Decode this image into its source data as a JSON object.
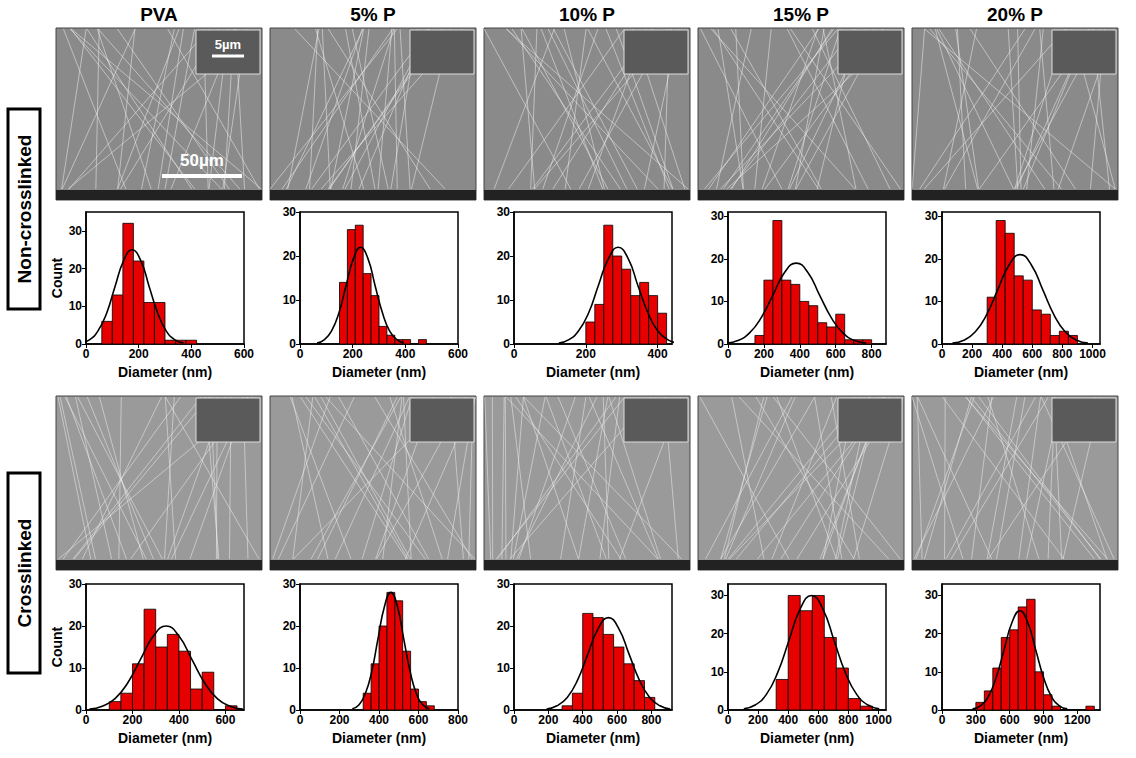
{
  "columns": [
    "PVA",
    "5% P",
    "10% P",
    "15% P",
    "20% P"
  ],
  "rows": [
    "Non-crosslinked",
    "Crosslinked"
  ],
  "scale_bars": {
    "inset": "5µm",
    "image": "50µm"
  },
  "chart_data": [
    {
      "type": "histogram",
      "xlabel": "Diameter (nm)",
      "ylabel": "Count",
      "color": "#e60000",
      "bins": [
        60,
        100,
        140,
        180,
        220,
        260,
        300,
        340,
        380,
        420
      ],
      "counts": [
        6,
        13,
        32,
        22,
        11,
        11,
        1,
        1,
        1
      ],
      "xlim": [
        0,
        600
      ],
      "xticks": [
        0,
        200,
        400,
        600
      ],
      "ylim": [
        0,
        35
      ],
      "yticks": [
        0,
        10,
        20,
        30
      ],
      "fit": {
        "color": "#000000",
        "x": [
          -20,
          13,
          45,
          78,
          110,
          143,
          175,
          208,
          240,
          273,
          305,
          338,
          370
        ],
        "y": [
          0.3,
          1.1,
          3.4,
          8.1,
          15.2,
          22.1,
          25,
          22.1,
          15.2,
          8.1,
          3.4,
          1.1,
          0.3
        ]
      }
    },
    {
      "type": "histogram",
      "xlabel": "Diameter (nm)",
      "color": "#e60000",
      "bins": [
        150,
        180,
        210,
        240,
        270,
        300,
        330,
        360,
        390,
        420,
        450,
        480
      ],
      "counts": [
        14,
        26,
        27,
        16,
        11,
        4,
        2,
        1,
        1,
        0,
        1
      ],
      "xlim": [
        0,
        600
      ],
      "xticks": [
        0,
        200,
        400,
        600
      ],
      "ylim": [
        0,
        30
      ],
      "yticks": [
        0,
        10,
        20,
        30
      ],
      "fit": {
        "color": "#000000",
        "x": [
          65,
          93,
          120,
          148,
          175,
          203,
          230,
          258,
          285,
          313,
          340,
          368,
          395
        ],
        "y": [
          0.2,
          1.0,
          3.0,
          7.1,
          13.3,
          19.4,
          22,
          19.4,
          13.3,
          7.1,
          3.0,
          1.0,
          0.2
        ]
      }
    },
    {
      "type": "histogram",
      "xlabel": "Diameter (nm)",
      "color": "#e60000",
      "bins": [
        200,
        225,
        250,
        275,
        300,
        325,
        350,
        375,
        400,
        425
      ],
      "counts": [
        5,
        9,
        27,
        20,
        17,
        11,
        14,
        11,
        7
      ],
      "xlim": [
        0,
        440
      ],
      "xticks": [
        0,
        200,
        400
      ],
      "ylim": [
        0,
        30
      ],
      "yticks": [
        0,
        10,
        20,
        30
      ],
      "fit": {
        "color": "#000000",
        "x": [
          125,
          153,
          180,
          208,
          235,
          263,
          290,
          318,
          345,
          373,
          400,
          428,
          455
        ],
        "y": [
          0.2,
          1.0,
          3.0,
          7.1,
          13.3,
          19.4,
          22,
          19.4,
          13.3,
          7.1,
          3.0,
          1.0,
          0.2
        ]
      }
    },
    {
      "type": "histogram",
      "xlabel": "Diameter (nm)",
      "color": "#e60000",
      "bins": [
        150,
        200,
        250,
        300,
        350,
        400,
        450,
        500,
        550,
        600,
        650,
        700,
        750,
        800
      ],
      "counts": [
        2,
        15,
        29,
        15,
        14,
        10,
        9,
        5,
        4,
        7,
        1,
        1,
        1
      ],
      "xlim": [
        0,
        880
      ],
      "xticks": [
        0,
        200,
        400,
        600,
        800
      ],
      "ylim": [
        0,
        31
      ],
      "yticks": [
        0,
        10,
        20,
        30
      ],
      "fit": {
        "color": "#000000",
        "x": [
          -10,
          55,
          120,
          185,
          250,
          315,
          380,
          445,
          510,
          575,
          640,
          705,
          770
        ],
        "y": [
          0.2,
          0.8,
          2.6,
          6.2,
          11.5,
          16.8,
          19,
          16.8,
          11.5,
          6.2,
          2.6,
          0.8,
          0.2
        ]
      }
    },
    {
      "type": "histogram",
      "xlabel": "Diameter (nm)",
      "color": "#e60000",
      "bins": [
        300,
        360,
        420,
        480,
        540,
        600,
        660,
        720,
        780,
        840,
        900
      ],
      "counts": [
        11,
        29,
        26,
        16,
        15,
        8,
        7,
        2,
        3,
        2
      ],
      "xlim": [
        0,
        1050
      ],
      "xticks": [
        0,
        200,
        400,
        600,
        800,
        1000
      ],
      "ylim": [
        0,
        31
      ],
      "yticks": [
        0,
        10,
        20,
        30
      ],
      "fit": {
        "color": "#000000",
        "x": [
          70,
          145,
          220,
          295,
          370,
          445,
          520,
          595,
          670,
          745,
          820,
          895,
          970
        ],
        "y": [
          0.2,
          0.9,
          2.8,
          6.8,
          12.7,
          18.5,
          21,
          18.5,
          12.7,
          6.8,
          2.8,
          0.9,
          0.2
        ]
      }
    },
    {
      "type": "histogram",
      "xlabel": "Diameter (nm)",
      "ylabel": "Count",
      "color": "#e60000",
      "bins": [
        100,
        150,
        200,
        250,
        300,
        350,
        400,
        450,
        500,
        550,
        600,
        650
      ],
      "counts": [
        2,
        4,
        11,
        24,
        15,
        18,
        14,
        5,
        9,
        0,
        1
      ],
      "xlim": [
        0,
        680
      ],
      "xticks": [
        0,
        200,
        400,
        600
      ],
      "ylim": [
        0,
        30
      ],
      "yticks": [
        0,
        10,
        20,
        30
      ],
      "fit": {
        "color": "#000000",
        "x": [
          15,
          70,
          125,
          180,
          235,
          290,
          345,
          400,
          455,
          510,
          565,
          620,
          675
        ],
        "y": [
          0.2,
          0.9,
          2.7,
          6.5,
          12.1,
          17.6,
          20,
          17.6,
          12.1,
          6.5,
          2.7,
          0.9,
          0.2
        ]
      }
    },
    {
      "type": "histogram",
      "xlabel": "Diameter (nm)",
      "color": "#e60000",
      "bins": [
        320,
        360,
        400,
        440,
        480,
        520,
        560,
        600,
        640,
        680
      ],
      "counts": [
        4,
        11,
        20,
        28,
        26,
        14,
        5,
        2,
        1
      ],
      "xlim": [
        0,
        800
      ],
      "xticks": [
        0,
        200,
        400,
        600,
        800
      ],
      "ylim": [
        0,
        30
      ],
      "yticks": [
        0,
        10,
        20,
        30
      ],
      "fit": {
        "color": "#000000",
        "x": [
          265,
          298,
          330,
          363,
          395,
          428,
          460,
          493,
          525,
          558,
          590,
          623,
          655
        ],
        "y": [
          0.3,
          1.2,
          3.8,
          9.1,
          17.0,
          24.7,
          28,
          24.7,
          17.0,
          9.1,
          3.8,
          1.2,
          0.3
        ]
      }
    },
    {
      "type": "histogram",
      "xlabel": "Diameter (nm)",
      "color": "#e60000",
      "bins": [
        280,
        340,
        400,
        460,
        520,
        580,
        640,
        700,
        760,
        820
      ],
      "counts": [
        1,
        4,
        23,
        22,
        18,
        15,
        11,
        7,
        3
      ],
      "xlim": [
        0,
        920
      ],
      "xticks": [
        0,
        200,
        400,
        600,
        800
      ],
      "ylim": [
        0,
        30
      ],
      "yticks": [
        0,
        10,
        20,
        30
      ],
      "fit": {
        "color": "#000000",
        "x": [
          190,
          250,
          310,
          370,
          430,
          490,
          550,
          610,
          670,
          730,
          790,
          850,
          910
        ],
        "y": [
          0.2,
          1.0,
          3.0,
          7.1,
          13.3,
          19.4,
          22,
          19.4,
          13.3,
          7.1,
          3.0,
          1.0,
          0.2
        ]
      }
    },
    {
      "type": "histogram",
      "xlabel": "Diameter (nm)",
      "color": "#e60000",
      "bins": [
        320,
        400,
        480,
        560,
        640,
        720,
        800,
        880,
        960
      ],
      "counts": [
        8,
        30,
        26,
        30,
        19,
        11,
        3,
        1
      ],
      "xlim": [
        0,
        1050
      ],
      "xticks": [
        0,
        200,
        400,
        600,
        800,
        1000
      ],
      "ylim": [
        0,
        33
      ],
      "yticks": [
        0,
        10,
        20,
        30
      ],
      "fit": {
        "color": "#000000",
        "x": [
          105,
          180,
          255,
          330,
          405,
          480,
          555,
          630,
          705,
          780,
          855,
          930,
          1005
        ],
        "y": [
          0.3,
          1.3,
          4.1,
          9.8,
          18.2,
          26.5,
          30,
          26.5,
          18.2,
          9.8,
          4.1,
          1.3,
          0.3
        ]
      }
    },
    {
      "type": "histogram",
      "xlabel": "Diameter (nm)",
      "color": "#e60000",
      "bins": [
        300,
        375,
        450,
        525,
        600,
        675,
        750,
        825,
        900,
        975,
        1050,
        1125,
        1200,
        1275,
        1350
      ],
      "counts": [
        2,
        5,
        11,
        19,
        21,
        27,
        29,
        10,
        4,
        1,
        0,
        0,
        0,
        1
      ],
      "xlim": [
        0,
        1400
      ],
      "xticks": [
        0,
        300,
        600,
        900,
        1200
      ],
      "ylim": [
        0,
        33
      ],
      "yticks": [
        0,
        10,
        20,
        30
      ],
      "fit": {
        "color": "#000000",
        "x": [
          270,
          340,
          410,
          480,
          550,
          620,
          690,
          760,
          830,
          900,
          970,
          1040,
          1110
        ],
        "y": [
          0.3,
          1.1,
          3.5,
          8.5,
          15.8,
          22.9,
          26,
          22.9,
          15.8,
          8.5,
          3.5,
          1.1,
          0.3
        ]
      }
    }
  ]
}
